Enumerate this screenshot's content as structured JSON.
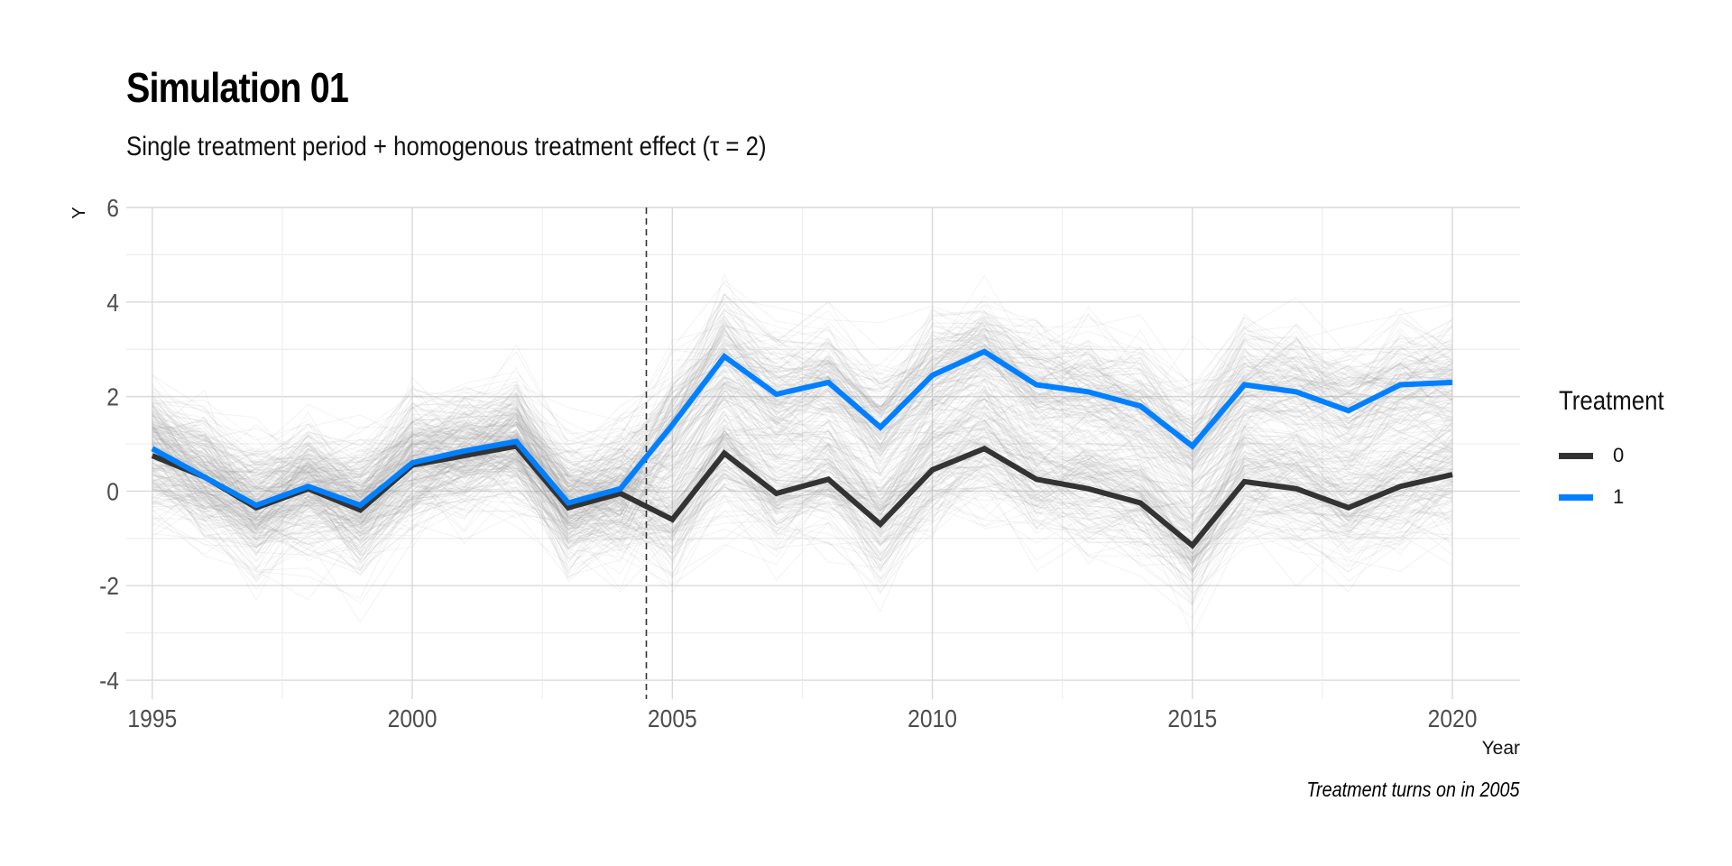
{
  "chart": {
    "title": "Simulation 01",
    "subtitle": "Single treatment period + homogenous treatment effect (τ = 2)",
    "caption": "Treatment turns on in 2005",
    "legend_title": "Treatment"
  },
  "chart_data": {
    "type": "line",
    "title": "Simulation 01",
    "subtitle": "Single treatment period + homogenous treatment effect (τ = 2)",
    "xlabel": "Year",
    "ylabel": "Y",
    "caption": "Treatment turns on in 2005",
    "xlim": [
      1994.5,
      2021.3
    ],
    "ylim": [
      -4.4,
      6
    ],
    "x_ticks": [
      1995,
      2000,
      2005,
      2010,
      2015,
      2020
    ],
    "y_ticks": [
      -4,
      -2,
      0,
      2,
      4,
      6
    ],
    "grid": true,
    "legend_title": "Treatment",
    "legend_position": "right",
    "treatment_line_x": 2004.5,
    "x": [
      1995,
      1996,
      1997,
      1998,
      1999,
      2000,
      2001,
      2002,
      2003,
      2004,
      2005,
      2006,
      2007,
      2008,
      2009,
      2010,
      2011,
      2012,
      2013,
      2014,
      2015,
      2016,
      2017,
      2018,
      2019,
      2020
    ],
    "series": [
      {
        "name": "0",
        "color": "#333333",
        "values": [
          0.75,
          0.3,
          -0.35,
          0.05,
          -0.4,
          0.55,
          0.75,
          0.95,
          -0.35,
          -0.05,
          -0.6,
          0.8,
          -0.05,
          0.25,
          -0.7,
          0.45,
          0.9,
          0.25,
          0.05,
          -0.25,
          -1.15,
          0.2,
          0.05,
          -0.35,
          0.1,
          0.35
        ]
      },
      {
        "name": "1",
        "color": "#0080FF",
        "values": [
          0.9,
          0.3,
          -0.3,
          0.1,
          -0.3,
          0.6,
          0.85,
          1.05,
          -0.25,
          0.05,
          1.4,
          2.85,
          2.05,
          2.3,
          1.35,
          2.45,
          2.95,
          2.25,
          2.1,
          1.8,
          0.95,
          2.25,
          2.1,
          1.7,
          2.25,
          2.3
        ]
      }
    ],
    "background_spaghetti": {
      "description_only": false,
      "color": "#999999",
      "count": 300
    }
  }
}
